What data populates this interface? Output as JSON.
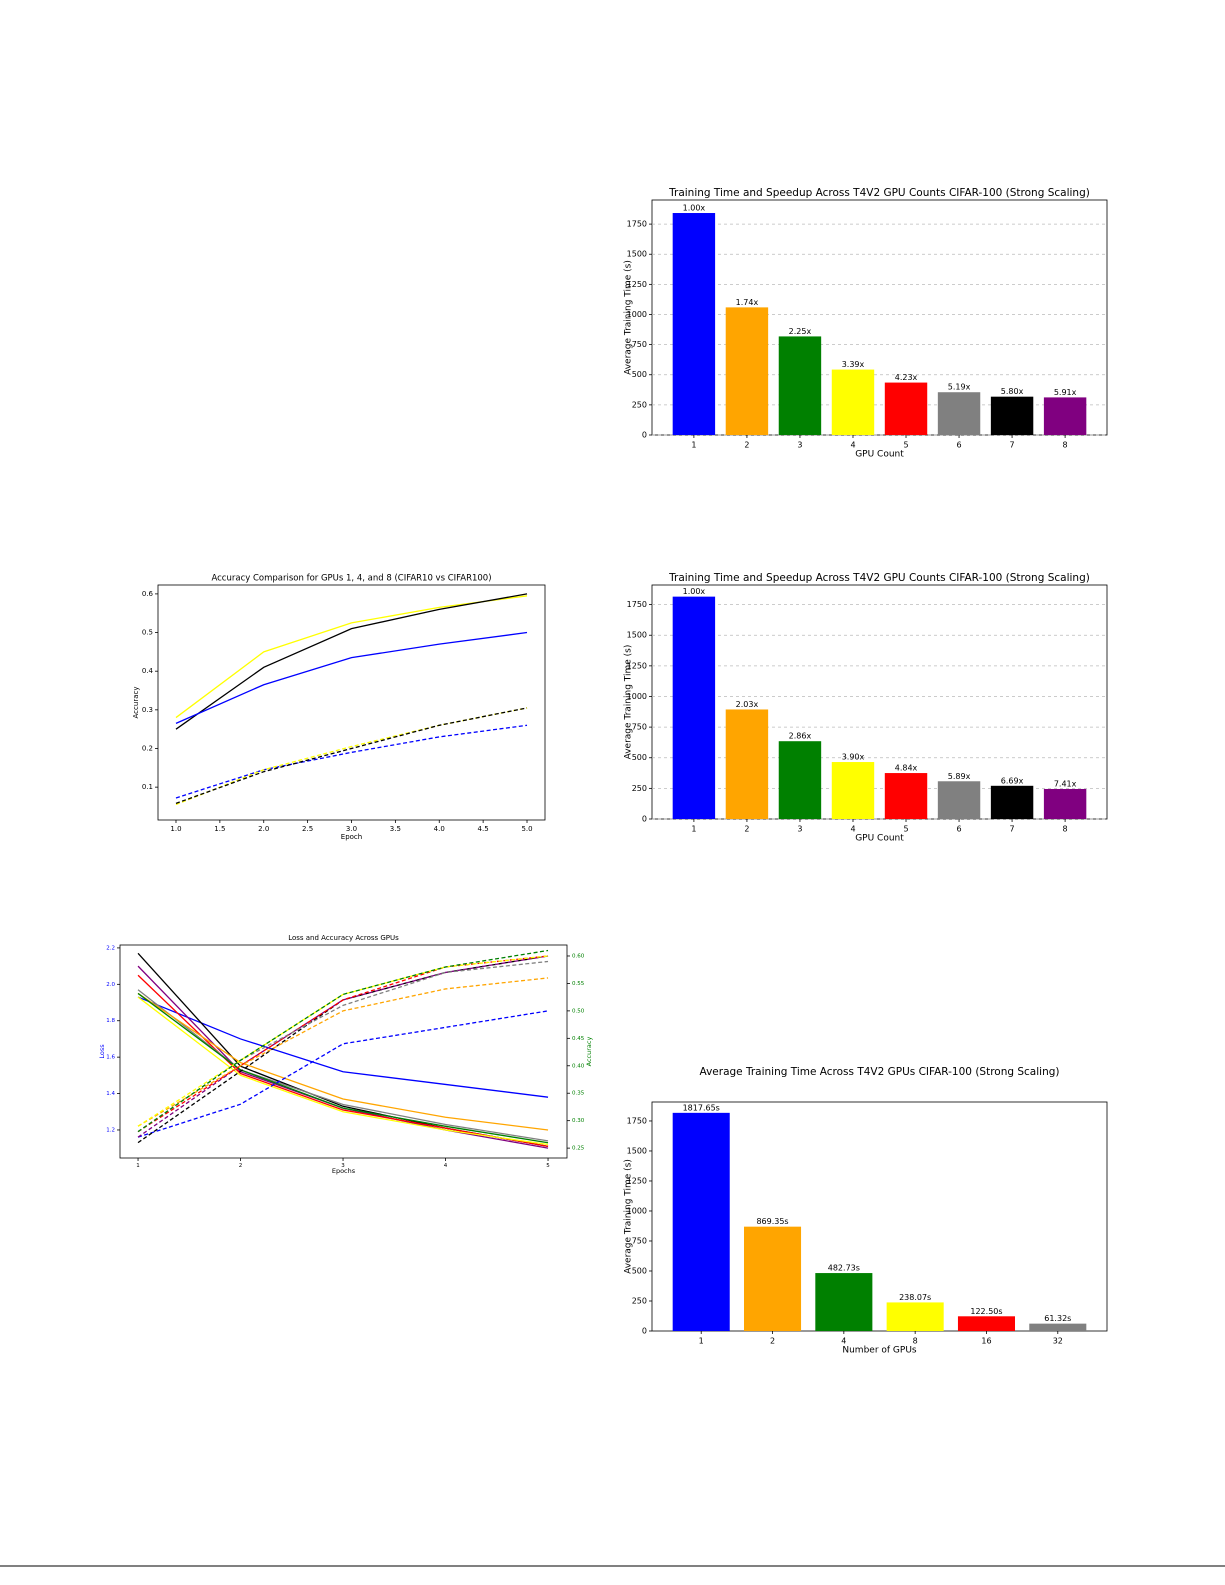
{
  "chart_data": [
    {
      "type": "bar",
      "title": "Training Time and Speedup Across T4V2 GPU Counts CIFAR-100 (Strong Scaling)",
      "xlabel": "GPU Count",
      "ylabel": "Average Training Time (s)",
      "categories": [
        "1",
        "2",
        "3",
        "4",
        "5",
        "6",
        "7",
        "8"
      ],
      "values": [
        1842,
        1059,
        818,
        543,
        435,
        355,
        318,
        312
      ],
      "bar_labels": [
        "1.00x",
        "1.74x",
        "2.25x",
        "3.39x",
        "4.23x",
        "5.19x",
        "5.80x",
        "5.91x"
      ],
      "colors": [
        "blue",
        "orange",
        "green",
        "yellow",
        "red",
        "gray",
        "black",
        "purple"
      ],
      "ylim": [
        0,
        1950
      ],
      "yticks": [
        0,
        250,
        500,
        750,
        1000,
        1250,
        1500,
        1750
      ],
      "grid": true
    },
    {
      "type": "line",
      "title": "Accuracy Comparison for GPUs 1, 4, and 8 (CIFAR10 vs CIFAR100)",
      "xlabel": "Epoch",
      "ylabel": "Accuracy",
      "x": [
        1,
        2,
        3,
        4,
        5
      ],
      "series": [
        {
          "color": "yellow",
          "dashed": false,
          "values": [
            0.28,
            0.45,
            0.525,
            0.565,
            0.595
          ]
        },
        {
          "color": "black",
          "dashed": false,
          "values": [
            0.25,
            0.41,
            0.51,
            0.56,
            0.6
          ]
        },
        {
          "color": "blue",
          "dashed": false,
          "values": [
            0.265,
            0.365,
            0.435,
            0.47,
            0.5
          ]
        },
        {
          "color": "blue",
          "dashed": true,
          "values": [
            0.072,
            0.145,
            0.19,
            0.23,
            0.26
          ]
        },
        {
          "color": "yellow",
          "dashed": true,
          "values": [
            0.055,
            0.145,
            0.205,
            0.26,
            0.305
          ]
        },
        {
          "color": "black",
          "dashed": true,
          "values": [
            0.058,
            0.14,
            0.2,
            0.26,
            0.305
          ]
        }
      ],
      "xlim": [
        0.795,
        5.205
      ],
      "xticks": [
        {
          "value": 1,
          "label": "1.0"
        },
        1.5,
        {
          "value": 2,
          "label": "2.0"
        },
        2.5,
        {
          "value": 3,
          "label": "3.0"
        },
        3.5,
        {
          "value": 4,
          "label": "4.0"
        },
        4.5,
        {
          "value": 5,
          "label": "5.0"
        }
      ],
      "ylim": [
        0.015,
        0.623
      ],
      "yticks": [
        0.1,
        0.2,
        0.3,
        0.4,
        0.5,
        0.6
      ],
      "grid": false
    },
    {
      "type": "bar",
      "title": "Training Time and Speedup Across T4V2 GPU Counts CIFAR-100 (Strong Scaling)",
      "xlabel": "GPU Count",
      "ylabel": "Average Training Time (s)",
      "categories": [
        "1",
        "2",
        "3",
        "4",
        "5",
        "6",
        "7",
        "8"
      ],
      "values": [
        1815,
        894,
        635,
        465,
        375,
        308,
        271,
        245
      ],
      "bar_labels": [
        "1.00x",
        "2.03x",
        "2.86x",
        "3.90x",
        "4.84x",
        "5.89x",
        "6.69x",
        "7.41x"
      ],
      "colors": [
        "blue",
        "orange",
        "green",
        "yellow",
        "red",
        "gray",
        "black",
        "purple"
      ],
      "ylim": [
        0,
        1910
      ],
      "yticks": [
        0,
        250,
        500,
        750,
        1000,
        1250,
        1500,
        1750
      ],
      "grid": true
    },
    {
      "type": "line",
      "title": "Loss and Accuracy Across GPUs",
      "xlabel": "Epochs",
      "ylabel": "Loss",
      "y2label": "Accuracy",
      "ylabel_color": "blue",
      "y2label_color": "green",
      "x": [
        1,
        2,
        3,
        4,
        5
      ],
      "series": [
        {
          "color": "blue",
          "dashed": false,
          "values": [
            1.93,
            1.7,
            1.52,
            1.45,
            1.38
          ]
        },
        {
          "color": "black",
          "dashed": false,
          "values": [
            2.17,
            1.55,
            1.33,
            1.21,
            1.11
          ]
        },
        {
          "color": "purple",
          "dashed": false,
          "values": [
            2.1,
            1.52,
            1.32,
            1.2,
            1.1
          ]
        },
        {
          "color": "red",
          "dashed": false,
          "values": [
            2.05,
            1.51,
            1.31,
            1.21,
            1.11
          ]
        },
        {
          "color": "gray",
          "dashed": false,
          "values": [
            1.97,
            1.53,
            1.34,
            1.23,
            1.14
          ]
        },
        {
          "color": "orange",
          "dashed": false,
          "values": [
            1.95,
            1.57,
            1.37,
            1.27,
            1.2
          ]
        },
        {
          "color": "yellow",
          "dashed": false,
          "values": [
            1.93,
            1.5,
            1.3,
            1.2,
            1.12
          ]
        },
        {
          "color": "green",
          "dashed": false,
          "values": [
            1.95,
            1.53,
            1.32,
            1.22,
            1.13
          ]
        },
        {
          "color": "blue",
          "dashed": true,
          "axis": "y2",
          "values": [
            0.27,
            0.33,
            0.44,
            0.47,
            0.5
          ]
        },
        {
          "color": "black",
          "dashed": true,
          "axis": "y2",
          "values": [
            0.26,
            0.39,
            0.52,
            0.57,
            0.6
          ]
        },
        {
          "color": "purple",
          "dashed": true,
          "axis": "y2",
          "values": [
            0.27,
            0.4,
            0.52,
            0.57,
            0.6
          ]
        },
        {
          "color": "red",
          "dashed": true,
          "axis": "y2",
          "values": [
            0.28,
            0.4,
            0.52,
            0.58,
            0.6
          ]
        },
        {
          "color": "gray",
          "dashed": true,
          "axis": "y2",
          "values": [
            0.28,
            0.41,
            0.51,
            0.57,
            0.59
          ]
        },
        {
          "color": "orange",
          "dashed": true,
          "axis": "y2",
          "values": [
            0.29,
            0.4,
            0.5,
            0.54,
            0.56
          ]
        },
        {
          "color": "yellow",
          "dashed": true,
          "axis": "y2",
          "values": [
            0.29,
            0.41,
            0.53,
            0.58,
            0.6
          ]
        },
        {
          "color": "green",
          "dashed": true,
          "axis": "y2",
          "values": [
            0.28,
            0.41,
            0.53,
            0.58,
            0.61
          ]
        }
      ],
      "xlim": [
        0.824,
        5.185
      ],
      "xticks": [
        1,
        2,
        3,
        4,
        5
      ],
      "ylim": [
        1.046,
        2.216
      ],
      "yticks": [
        {
          "value": 1.2,
          "label": "1.2"
        },
        1.4,
        1.6,
        1.8,
        {
          "value": 2,
          "label": "2.0"
        },
        2.2
      ],
      "y2lim": [
        0.232,
        0.62
      ],
      "y2ticks": [
        0.25,
        {
          "value": 0.3,
          "label": "0.30"
        },
        0.35,
        {
          "value": 0.4,
          "label": "0.40"
        },
        0.45,
        {
          "value": 0.5,
          "label": "0.50"
        },
        0.55,
        {
          "value": 0.6,
          "label": "0.60"
        }
      ],
      "grid": false
    },
    {
      "type": "bar",
      "title": "Average Training Time Across T4V2 GPUs CIFAR-100 (Strong Scaling)",
      "xlabel": "Number of GPUs",
      "ylabel": "Average Training Time (s)",
      "categories": [
        "1",
        "2",
        "4",
        "8",
        "16",
        "32"
      ],
      "values": [
        1817.65,
        869.35,
        482.73,
        238.07,
        122.5,
        61.32
      ],
      "value_labels": [
        "1817.65s",
        "869.35s",
        "482.73s",
        "238.07s",
        "122.50s",
        "61.32s"
      ],
      "colors": [
        "blue",
        "orange",
        "green",
        "yellow",
        "red",
        "gray"
      ],
      "ylim": [
        0,
        1908
      ],
      "yticks": [
        0,
        250,
        500,
        750,
        1000,
        1250,
        1500,
        1750
      ],
      "grid": false
    }
  ]
}
